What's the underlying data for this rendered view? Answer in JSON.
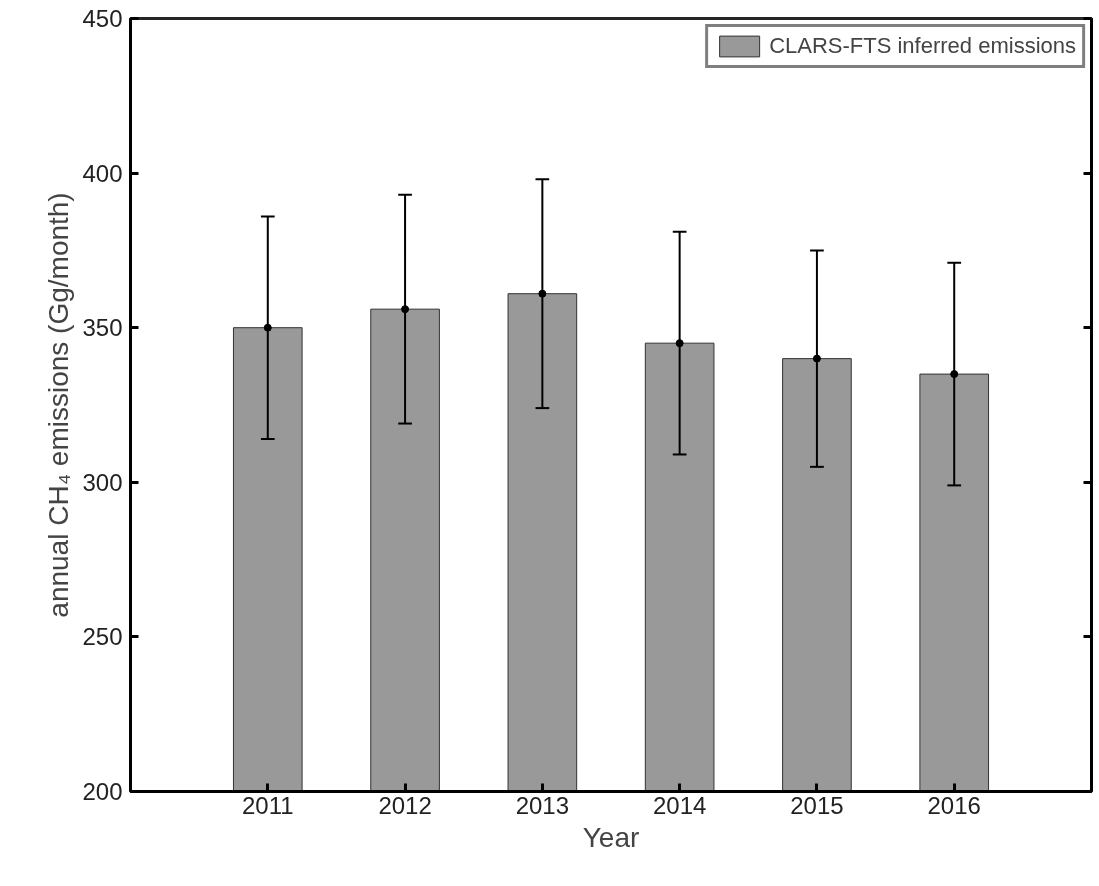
{
  "chart_data": {
    "type": "bar",
    "xlabel": "Year",
    "ylabel": "annual CH₄ emissions (Gg/month)",
    "categories": [
      "2011",
      "2012",
      "2013",
      "2014",
      "2015",
      "2016"
    ],
    "series": [
      {
        "name": "CLARS-FTS inferred emissions",
        "color": "#999999",
        "values": [
          350,
          356,
          361,
          345,
          340,
          335
        ]
      },
      {
        "type": "scatter",
        "color": "#000000",
        "values": [
          350,
          356,
          361,
          345,
          340,
          335
        ],
        "errors": [
          36,
          37,
          37,
          36,
          35,
          36
        ]
      }
    ],
    "ylim": [
      200,
      450
    ],
    "yticks": [
      200,
      250,
      300,
      350,
      400,
      450
    ],
    "grid": false,
    "marker": "circle",
    "legend": "top right"
  }
}
